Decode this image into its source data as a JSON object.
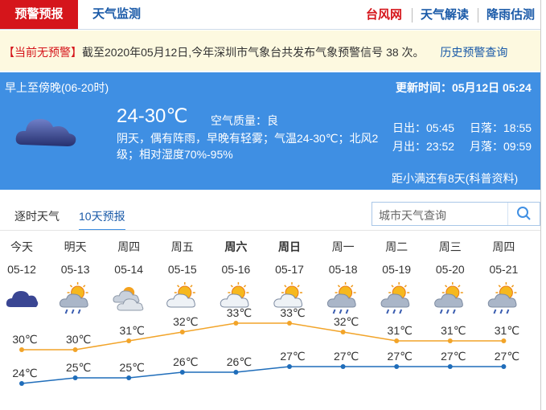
{
  "header": {
    "tabs": [
      "预警预报",
      "天气监测"
    ],
    "links": [
      "台风网",
      "天气解读",
      "降雨估测"
    ]
  },
  "alert": {
    "status": "【当前无预警】",
    "text": "截至2020年05月12日,今年深圳市气象台共发布气象预警信号 38 次。",
    "link": "历史预警查询"
  },
  "today": {
    "period": "早上至傍晚(06-20时)",
    "updated": "更新时间：05月12日 05:24",
    "temp": "24-30℃",
    "air": "空气质量：良",
    "desc": "阴天，偶有阵雨，早晚有轻雾；气温24-30℃；北风2级；相对湿度70%-95%",
    "sun": [
      "日出：05:45",
      "日落：18:55",
      "月出：23:52",
      "月落：09:59"
    ],
    "term": "距小满还有8天(科普资料)"
  },
  "tabs": [
    "逐时天气",
    "10天预报"
  ],
  "search": "城市天气查询",
  "forecast": {
    "weekdays": [
      "今天",
      "明天",
      "周四",
      "周五",
      "周六",
      "周日",
      "周一",
      "周二",
      "周三",
      "周四"
    ],
    "dates": [
      "05-12",
      "05-13",
      "05-14",
      "05-15",
      "05-16",
      "05-17",
      "05-18",
      "05-19",
      "05-20",
      "05-21"
    ],
    "highs": [
      30,
      30,
      31,
      32,
      33,
      33,
      32,
      31,
      31,
      31
    ],
    "high_labels": [
      "30℃",
      "30℃",
      "31℃",
      "32℃",
      "33℃",
      "33℃",
      "32℃",
      "31℃",
      "31℃",
      "31℃"
    ],
    "lows": [
      24,
      25,
      25,
      26,
      26,
      27,
      27,
      27,
      27,
      27
    ],
    "low_labels": [
      "24℃",
      "25℃",
      "25℃",
      "26℃",
      "26℃",
      "27℃",
      "27℃",
      "27℃",
      "27℃",
      "27℃"
    ]
  }
}
